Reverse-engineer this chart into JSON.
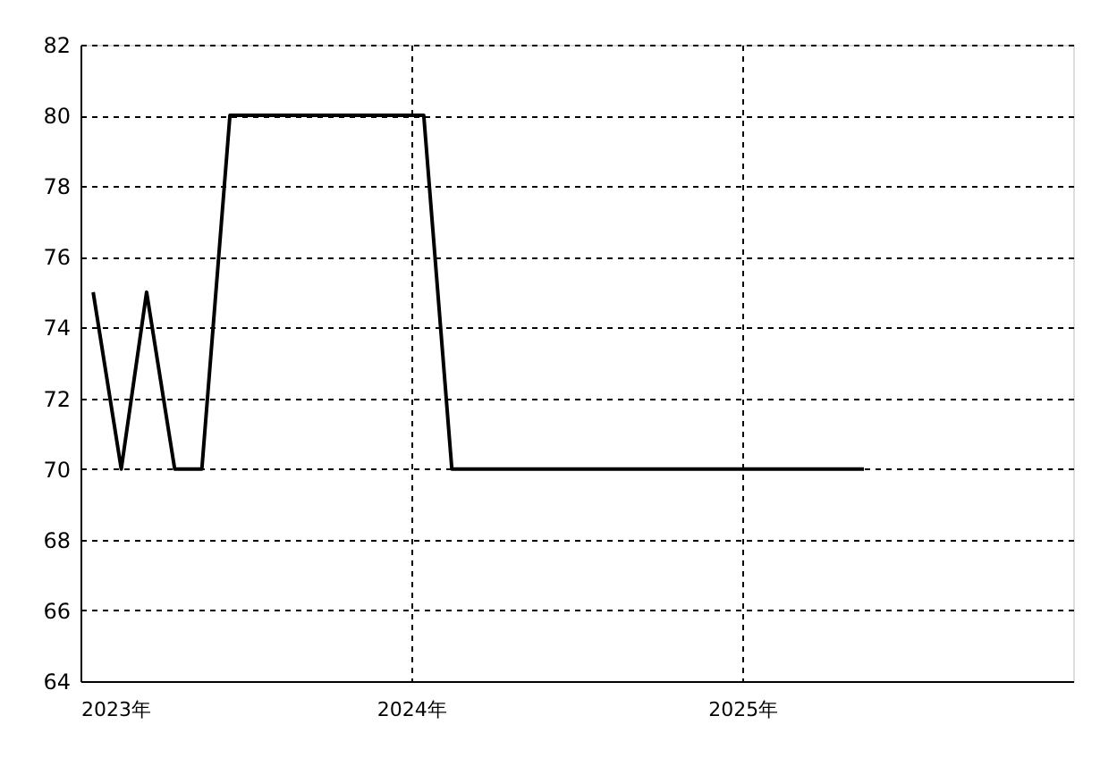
{
  "chart_data": {
    "type": "line",
    "x": [
      "2023-01-15",
      "2023-02-15",
      "2023-03-15",
      "2023-04-15",
      "2023-05-15",
      "2023-06-15",
      "2023-07-15",
      "2023-08-15",
      "2023-09-15",
      "2023-10-15",
      "2023-11-15",
      "2023-12-15",
      "2024-01-15",
      "2024-02-15",
      "2024-03-15",
      "2024-04-15",
      "2024-05-15",
      "2024-06-15",
      "2024-07-15",
      "2024-08-15",
      "2024-09-15",
      "2024-10-15",
      "2024-11-15",
      "2024-12-15",
      "2025-01-15",
      "2025-02-15",
      "2025-03-15",
      "2025-04-15",
      "2025-05-15"
    ],
    "series": [
      {
        "color": "#000000",
        "values": [
          75,
          70,
          75,
          70,
          70,
          80,
          80,
          80,
          80,
          80,
          80,
          80,
          80,
          70,
          70,
          70,
          70,
          70,
          70,
          70,
          70,
          70,
          70,
          70,
          70,
          70,
          70,
          70,
          70
        ]
      }
    ],
    "xlim": [
      "2023-01-01",
      "2026-01-01"
    ],
    "xticks": [
      {
        "value": "2023-01-01",
        "label": "2023年"
      },
      {
        "value": "2024-01-01",
        "label": "2024年"
      },
      {
        "value": "2025-01-01",
        "label": "2025年"
      }
    ],
    "ylim": [
      64,
      82
    ],
    "yticks": [
      64,
      66,
      68,
      70,
      72,
      74,
      76,
      78,
      80,
      82
    ],
    "grid": true,
    "marker": "none",
    "line_style": "solid",
    "legend": false
  }
}
